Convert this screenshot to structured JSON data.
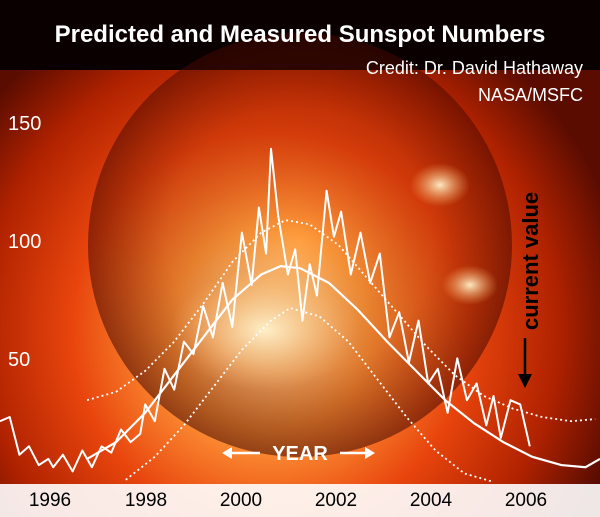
{
  "chart_data": {
    "type": "line",
    "title": "Predicted and Measured Sunspot Numbers",
    "credit_line1": "Credit: Dr. David Hathaway",
    "credit_line2": "NASA/MSFC",
    "xlabel": "YEAR",
    "ylabel": "",
    "xlim": [
      1995.0,
      2007.4
    ],
    "ylim": [
      0,
      190
    ],
    "x_ticks": [
      "1996",
      "1998",
      "2000",
      "2002",
      "2004",
      "2006"
    ],
    "y_ticks": [
      "50",
      "100",
      "150"
    ],
    "annotation": "current value",
    "colors": {
      "background_dark": "#000000",
      "sun_core": "#ffb060",
      "sun_mid": "#e8450d",
      "sun_edge": "#7a1000",
      "line": "#ffffff",
      "axis_text": "#000000",
      "tick_text": "#ffffff"
    },
    "series": [
      {
        "style": "solid-jagged",
        "points": [
          [
            1995.0,
            30
          ],
          [
            1995.2,
            32
          ],
          [
            1995.4,
            14
          ],
          [
            1995.6,
            18
          ],
          [
            1995.8,
            9
          ],
          [
            1996.0,
            12
          ],
          [
            1996.1,
            8
          ],
          [
            1996.3,
            14
          ],
          [
            1996.5,
            6
          ],
          [
            1996.7,
            16
          ],
          [
            1996.9,
            8
          ],
          [
            1997.1,
            18
          ],
          [
            1997.3,
            15
          ],
          [
            1997.5,
            26
          ],
          [
            1997.7,
            20
          ],
          [
            1997.9,
            24
          ],
          [
            1998.0,
            38
          ],
          [
            1998.2,
            30
          ],
          [
            1998.4,
            55
          ],
          [
            1998.6,
            45
          ],
          [
            1998.8,
            68
          ],
          [
            1999.0,
            62
          ],
          [
            1999.2,
            85
          ],
          [
            1999.4,
            70
          ],
          [
            1999.6,
            96
          ],
          [
            1999.8,
            75
          ],
          [
            2000.0,
            120
          ],
          [
            2000.2,
            95
          ],
          [
            2000.35,
            132
          ],
          [
            2000.5,
            110
          ],
          [
            2000.6,
            160
          ],
          [
            2000.75,
            128
          ],
          [
            2000.95,
            100
          ],
          [
            2001.1,
            112
          ],
          [
            2001.25,
            78
          ],
          [
            2001.4,
            105
          ],
          [
            2001.55,
            90
          ],
          [
            2001.75,
            140
          ],
          [
            2001.9,
            118
          ],
          [
            2002.05,
            130
          ],
          [
            2002.25,
            100
          ],
          [
            2002.45,
            120
          ],
          [
            2002.65,
            96
          ],
          [
            2002.85,
            110
          ],
          [
            2003.05,
            70
          ],
          [
            2003.25,
            82
          ],
          [
            2003.45,
            58
          ],
          [
            2003.65,
            78
          ],
          [
            2003.85,
            48
          ],
          [
            2004.05,
            55
          ],
          [
            2004.25,
            34
          ],
          [
            2004.45,
            60
          ],
          [
            2004.65,
            40
          ],
          [
            2004.85,
            48
          ],
          [
            2005.05,
            28
          ],
          [
            2005.2,
            42
          ],
          [
            2005.35,
            22
          ],
          [
            2005.55,
            40
          ],
          [
            2005.75,
            38
          ],
          [
            2005.95,
            18
          ]
        ]
      },
      {
        "style": "solid-smooth",
        "points": [
          [
            1996.8,
            12
          ],
          [
            1997.4,
            20
          ],
          [
            1998.0,
            34
          ],
          [
            1998.6,
            52
          ],
          [
            1999.2,
            70
          ],
          [
            1999.8,
            88
          ],
          [
            2000.4,
            100
          ],
          [
            2000.8,
            104
          ],
          [
            2001.2,
            103
          ],
          [
            2001.8,
            96
          ],
          [
            2002.4,
            83
          ],
          [
            2003.0,
            68
          ],
          [
            2003.6,
            54
          ],
          [
            2004.2,
            40
          ],
          [
            2004.8,
            29
          ],
          [
            2005.4,
            20
          ],
          [
            2006.0,
            13
          ],
          [
            2006.6,
            9
          ],
          [
            2007.1,
            8
          ],
          [
            2007.4,
            12
          ]
        ]
      },
      {
        "style": "dotted",
        "points": [
          [
            1996.8,
            40
          ],
          [
            1997.4,
            44
          ],
          [
            1998.0,
            54
          ],
          [
            1998.6,
            68
          ],
          [
            1999.2,
            86
          ],
          [
            1999.8,
            106
          ],
          [
            2000.4,
            120
          ],
          [
            2000.9,
            126
          ],
          [
            2001.4,
            124
          ],
          [
            2002.0,
            114
          ],
          [
            2002.6,
            98
          ],
          [
            2003.2,
            82
          ],
          [
            2003.8,
            66
          ],
          [
            2004.4,
            52
          ],
          [
            2005.0,
            42
          ],
          [
            2005.6,
            36
          ],
          [
            2006.2,
            32
          ],
          [
            2006.8,
            30
          ],
          [
            2007.3,
            31
          ]
        ]
      },
      {
        "style": "dotted",
        "points": [
          [
            1997.6,
            2
          ],
          [
            1998.2,
            13
          ],
          [
            1998.8,
            28
          ],
          [
            1999.4,
            46
          ],
          [
            2000.0,
            64
          ],
          [
            2000.6,
            78
          ],
          [
            2001.0,
            84
          ],
          [
            2001.6,
            80
          ],
          [
            2002.2,
            68
          ],
          [
            2002.8,
            50
          ],
          [
            2003.4,
            32
          ],
          [
            2004.0,
            16
          ],
          [
            2004.6,
            5
          ],
          [
            2005.2,
            1
          ]
        ]
      }
    ]
  }
}
